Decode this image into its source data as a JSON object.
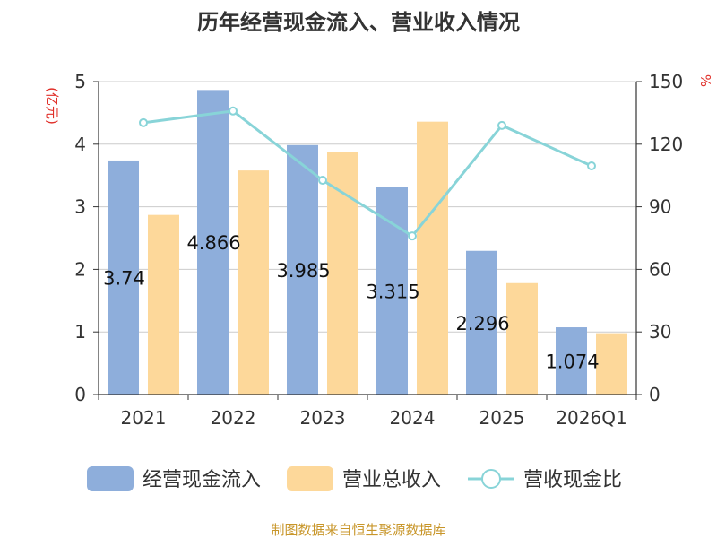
{
  "chart_data": {
    "type": "bar",
    "title": "历年经营现金流入、营业收入情况",
    "categories": [
      "2021",
      "2022",
      "2023",
      "2024",
      "2025",
      "2026Q1"
    ],
    "left_axis": {
      "unit": "(亿元)",
      "ylim": [
        0,
        5
      ],
      "ticks": [
        "0",
        "1",
        "2",
        "3",
        "4",
        "5"
      ]
    },
    "right_axis": {
      "unit": "%",
      "ylim": [
        0,
        150
      ],
      "ticks": [
        "0",
        "30",
        "60",
        "90",
        "120",
        "150"
      ]
    },
    "grid": true,
    "legend_position": "bottom",
    "series": [
      {
        "name": "经营现金流入",
        "kind": "bar",
        "axis": "left",
        "color": "#8eaedb",
        "values": [
          3.74,
          4.866,
          3.985,
          3.315,
          2.296,
          1.074
        ],
        "labels": [
          "3.74",
          "4.866",
          "3.985",
          "3.315",
          "2.296",
          "1.074"
        ]
      },
      {
        "name": "营业总收入",
        "kind": "bar",
        "axis": "left",
        "color": "#fdd89a",
        "values": [
          2.87,
          3.58,
          3.88,
          4.36,
          1.78,
          0.98
        ]
      },
      {
        "name": "营收现金比",
        "kind": "line",
        "axis": "right",
        "color": "#88d4d8",
        "values": [
          130.3,
          135.9,
          102.7,
          76.0,
          129.0,
          109.6
        ]
      }
    ]
  },
  "footer": {
    "source": "制图数据来自恒生聚源数据库"
  }
}
